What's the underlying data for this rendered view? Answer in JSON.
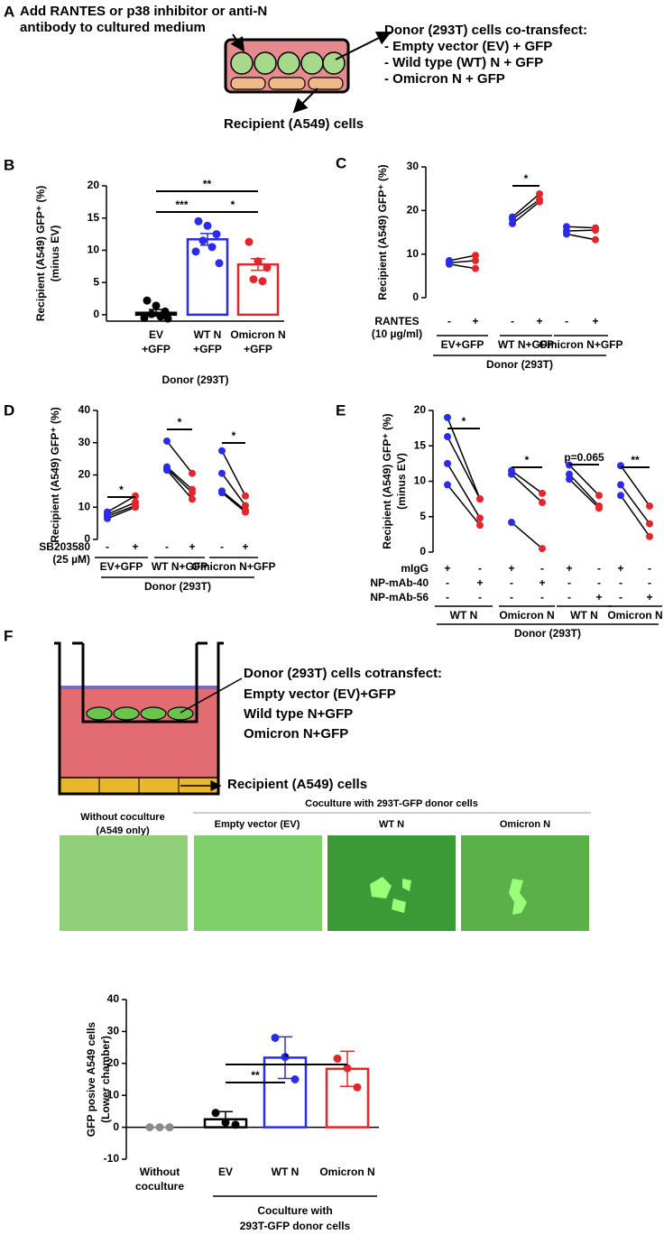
{
  "panel_labels": [
    "A",
    "B",
    "C",
    "D",
    "E",
    "F"
  ],
  "diagram_a": {
    "instruction": [
      "Add RANTES  or p38 inhibitor or anti-N",
      "antibody to cultured medium"
    ],
    "donor_title": "Donor (293T) cells co-transfect:",
    "donor_items": [
      "- Empty vector (EV) + GFP",
      "-   Wild type (WT) N + GFP",
      "-   Omicron N + GFP"
    ],
    "recipient": "Recipient (A549) cells"
  },
  "diagram_f": {
    "donor_title": "Donor (293T) cells cotransfect:",
    "donor_items": [
      "Empty vector (EV)+GFP",
      "Wild type N+GFP",
      "Omicron N+GFP"
    ],
    "recipient": "Recipient (A549) cells"
  },
  "micrographs": {
    "control_title": [
      "Without coculture",
      "(A549 only)"
    ],
    "coculture_title": "Coculture with 293T-GFP donor cells",
    "panels": [
      "Empty vector (EV)",
      "WT N",
      "Omicron N"
    ]
  },
  "chart_data": [
    {
      "type": "bar",
      "ylabel": [
        "Recipient (A549) GFP⁺ (%)",
        "(minus EV)"
      ],
      "categories": [
        [
          "EV",
          "+GFP"
        ],
        [
          "WT N",
          "+GFP"
        ],
        [
          "Omicron N",
          "+GFP"
        ]
      ],
      "values": [
        0.3,
        11.7,
        7.8
      ],
      "errors": [
        0.5,
        0.9,
        0.9
      ],
      "points": [
        [
          2.2,
          1.4,
          0.5,
          0.1,
          -0.3,
          -0.5,
          -0.6
        ],
        [
          14.5,
          13.8,
          12.5,
          11.5,
          10.5,
          9.8,
          8.0
        ],
        [
          11.3,
          8.3,
          7.3,
          5.5,
          5.2
        ]
      ],
      "colors": [
        "#000000",
        "#2b2bea",
        "#e3262b"
      ],
      "ylim": [
        -1,
        20
      ],
      "yticks": [
        0,
        5,
        10,
        15,
        20
      ],
      "significance": [
        "***",
        "*",
        "**"
      ],
      "xlabel": "Donor (293T)"
    },
    {
      "type": "paired",
      "ylabel": [
        "Recipient (A549) GFP⁺ (%)"
      ],
      "treatments": [
        {
          "label": [
            "RANTES",
            "(10 µg/ml)"
          ],
          "signs": [
            "-",
            "+",
            "-",
            "+",
            "-",
            "+"
          ]
        }
      ],
      "groups": [
        {
          "name": "EV+GFP",
          "before": [
            8.5,
            8.0,
            7.7
          ],
          "after": [
            9.7,
            8.5,
            6.7
          ]
        },
        {
          "name": "WT N+GFP",
          "before": [
            18.5,
            18.0,
            17.0
          ],
          "after": [
            23.8,
            22.5,
            22.0
          ]
        },
        {
          "name": "Omicron N+GFP",
          "before": [
            16.3,
            15.3,
            14.6
          ],
          "after": [
            16.0,
            15.5,
            13.3
          ]
        }
      ],
      "before_color": "#2b2bea",
      "after_color": "#e3262b",
      "ylim": [
        0,
        30
      ],
      "yticks": [
        0,
        10,
        20,
        30
      ],
      "significance": [
        null,
        "*",
        null
      ],
      "xlabel": "Donor (293T)"
    },
    {
      "type": "paired",
      "ylabel": [
        "Recipient (A549) GFP⁺ (%)"
      ],
      "treatments": [
        {
          "label": [
            "SB203580",
            "(25 µM)"
          ],
          "signs": [
            "-",
            "+",
            "-",
            "+",
            "-",
            "+"
          ]
        }
      ],
      "groups": [
        {
          "name": "EV+GFP",
          "before": [
            8.5,
            7.8,
            7.2,
            6.5
          ],
          "after": [
            13.5,
            11.5,
            10.5,
            10.0
          ]
        },
        {
          "name": "WT N+GFP",
          "before": [
            30.5,
            22.5,
            22.0,
            21.5
          ],
          "after": [
            20.5,
            15.5,
            14.5,
            12.5
          ]
        },
        {
          "name": "Omicron N+GFP",
          "before": [
            27.5,
            20.5,
            15.0,
            14.5
          ],
          "after": [
            13.5,
            10.5,
            9.0,
            8.5
          ]
        }
      ],
      "before_color": "#2b2bea",
      "after_color": "#e3262b",
      "ylim": [
        0,
        40
      ],
      "yticks": [
        0,
        10,
        20,
        30,
        40
      ],
      "significance": [
        "*",
        "*",
        "*"
      ],
      "xlabel": "Donor (293T)"
    },
    {
      "type": "paired",
      "ylabel": [
        "Recipient (A549) GFP⁺ (%)",
        "(minus EV)"
      ],
      "treatments": [
        {
          "label": [
            "mIgG"
          ],
          "signs": [
            "+",
            "-",
            "+",
            "-",
            "+",
            "-",
            "+",
            "-"
          ]
        },
        {
          "label": [
            "NP-mAb-40"
          ],
          "signs": [
            "-",
            "+",
            "-",
            "+",
            "-",
            "-",
            "-",
            "-"
          ]
        },
        {
          "label": [
            "NP-mAb-56"
          ],
          "signs": [
            "-",
            "-",
            "-",
            "-",
            "-",
            "+",
            "-",
            "+"
          ]
        }
      ],
      "groups": [
        {
          "name": "WT N",
          "before": [
            19.0,
            16.3,
            12.5,
            9.5
          ],
          "after": [
            7.5,
            7.5,
            4.8,
            3.8
          ]
        },
        {
          "name": "Omicron N",
          "before": [
            11.5,
            11.0,
            4.2
          ],
          "after": [
            8.3,
            7.0,
            0.5
          ]
        },
        {
          "name": "WT N",
          "before": [
            12.3,
            11.0,
            10.3
          ],
          "after": [
            8.0,
            6.5,
            6.2
          ]
        },
        {
          "name": "Omicron N",
          "before": [
            12.2,
            9.5,
            8.0
          ],
          "after": [
            6.5,
            4.0,
            2.2
          ]
        }
      ],
      "before_color": "#2b2bea",
      "after_color": "#e3262b",
      "ylim": [
        0,
        20
      ],
      "yticks": [
        0,
        5,
        10,
        15,
        20
      ],
      "significance": [
        "*",
        "*",
        "p=0.065",
        "**"
      ],
      "xlabel": "Donor (293T)"
    },
    {
      "type": "bar",
      "ylabel": [
        "GFP posive A549 cells",
        "(Lower chamber)"
      ],
      "categories": [
        [
          "Without",
          "coculture"
        ],
        [
          "EV"
        ],
        [
          "WT N"
        ],
        [
          "Omicron N"
        ]
      ],
      "values": [
        0,
        2.5,
        21.8,
        18.3
      ],
      "errors": [
        0,
        2.4,
        6.5,
        5.5
      ],
      "points": [
        [
          0,
          0,
          0
        ],
        [
          4.5,
          1.5,
          0.8
        ],
        [
          28.0,
          22.0,
          15.0
        ],
        [
          21.5,
          18.5,
          12.5
        ]
      ],
      "colors": [
        "#8a8a8a",
        "#000000",
        "#2b2bea",
        "#e3262b"
      ],
      "ylim": [
        -10,
        40
      ],
      "yticks": [
        -10,
        0,
        10,
        20,
        30,
        40
      ],
      "significance": [
        "**",
        "*"
      ],
      "group_label": [
        "Coculture with",
        "293T-GFP donor cells"
      ]
    }
  ]
}
